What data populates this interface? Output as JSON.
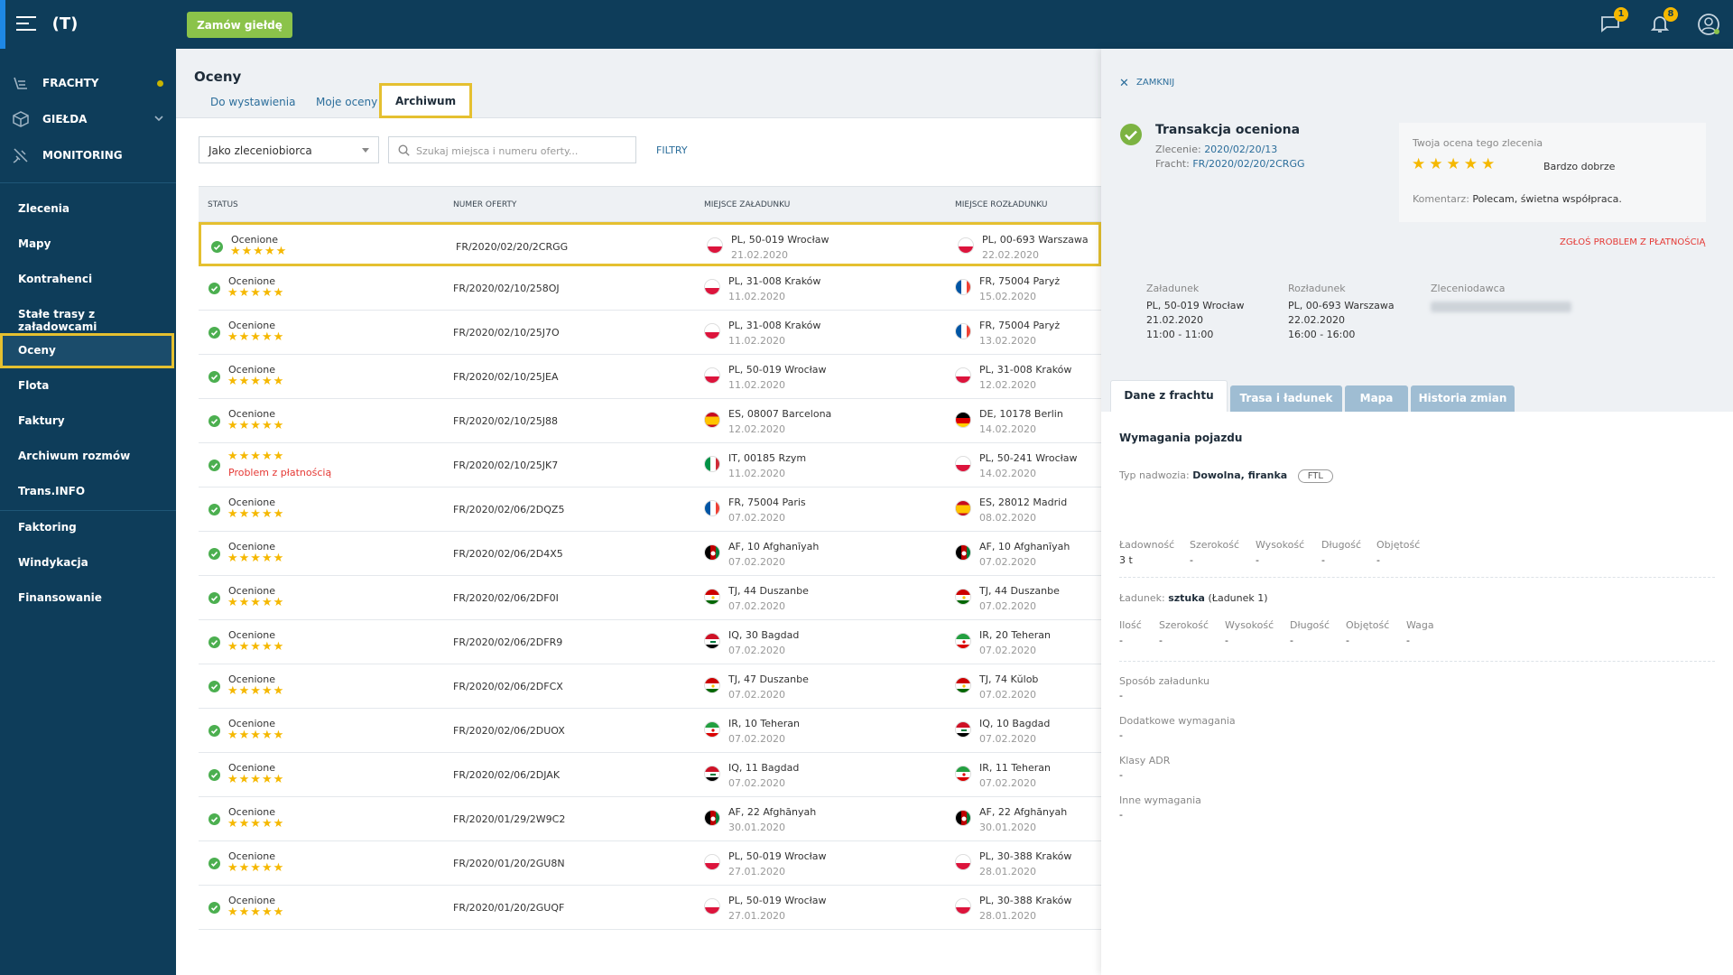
{
  "topbar": {
    "logo": "(T)",
    "order_button": "Zamów giełdę",
    "messages_badge": "1",
    "notifications_badge": "8"
  },
  "sidebar": {
    "main": [
      {
        "label": "FRACHTY",
        "icon": "freight-icon"
      },
      {
        "label": "GIEŁDA",
        "icon": "box-icon"
      },
      {
        "label": "MONITORING",
        "icon": "satellite-icon"
      }
    ],
    "items": [
      "Zlecenia",
      "Mapy",
      "Kontrahenci",
      "Stałe trasy z załadowcami",
      "Oceny",
      "Flota",
      "Faktury",
      "Archiwum rozmów",
      "Trans.INFO",
      "Faktoring",
      "Windykacja",
      "Finansowanie"
    ]
  },
  "page": {
    "title": "Oceny",
    "tabs": [
      "Do wystawienia",
      "Moje oceny",
      "Archiwum"
    ],
    "dropdown": "Jako zleceniobiorca",
    "search_placeholder": "Szukaj miejsca i numeru oferty...",
    "filters": "FILTRY"
  },
  "table": {
    "headers": [
      "STATUS",
      "NUMER OFERTY",
      "MIEJSCE ZAŁADUNKU",
      "MIEJSCE ROZŁADUNKU"
    ],
    "rows": [
      {
        "status": "Ocenione",
        "problem": false,
        "offer": "FR/2020/02/20/2CRGG",
        "load": "PL, 50-019 Wrocław",
        "load_date": "21.02.2020",
        "load_flag": "pl",
        "unload": "PL, 00-693 Warszawa",
        "unload_date": "22.02.2020",
        "unload_flag": "pl"
      },
      {
        "status": "Ocenione",
        "problem": false,
        "offer": "FR/2020/02/10/258OJ",
        "load": "PL, 31-008 Kraków",
        "load_date": "11.02.2020",
        "load_flag": "pl",
        "unload": "FR, 75004 Paryż",
        "unload_date": "15.02.2020",
        "unload_flag": "fr"
      },
      {
        "status": "Ocenione",
        "problem": false,
        "offer": "FR/2020/02/10/25J7O",
        "load": "PL, 31-008 Kraków",
        "load_date": "11.02.2020",
        "load_flag": "pl",
        "unload": "FR, 75004 Paryż",
        "unload_date": "13.02.2020",
        "unload_flag": "fr"
      },
      {
        "status": "Ocenione",
        "problem": false,
        "offer": "FR/2020/02/10/25JEA",
        "load": "PL, 50-019 Wrocław",
        "load_date": "11.02.2020",
        "load_flag": "pl",
        "unload": "PL, 31-008 Kraków",
        "unload_date": "12.02.2020",
        "unload_flag": "pl"
      },
      {
        "status": "Ocenione",
        "problem": false,
        "offer": "FR/2020/02/10/25J88",
        "load": "ES, 08007 Barcelona",
        "load_date": "12.02.2020",
        "load_flag": "es",
        "unload": "DE, 10178 Berlin",
        "unload_date": "14.02.2020",
        "unload_flag": "de"
      },
      {
        "status": "Problem z płatnością",
        "problem": true,
        "offer": "FR/2020/02/10/25JK7",
        "load": "IT, 00185 Rzym",
        "load_date": "11.02.2020",
        "load_flag": "it",
        "unload": "PL, 50-241 Wrocław",
        "unload_date": "14.02.2020",
        "unload_flag": "pl"
      },
      {
        "status": "Ocenione",
        "problem": false,
        "offer": "FR/2020/02/06/2DQZ5",
        "load": "FR, 75004 Paris",
        "load_date": "07.02.2020",
        "load_flag": "fr",
        "unload": "ES, 28012 Madrid",
        "unload_date": "08.02.2020",
        "unload_flag": "es"
      },
      {
        "status": "Ocenione",
        "problem": false,
        "offer": "FR/2020/02/06/2D4X5",
        "load": "AF, 10 Afghanīyah",
        "load_date": "07.02.2020",
        "load_flag": "af",
        "unload": "AF, 10 Afghanīyah",
        "unload_date": "07.02.2020",
        "unload_flag": "af"
      },
      {
        "status": "Ocenione",
        "problem": false,
        "offer": "FR/2020/02/06/2DF0I",
        "load": "TJ, 44 Duszanbe",
        "load_date": "07.02.2020",
        "load_flag": "tj",
        "unload": "TJ, 44 Duszanbe",
        "unload_date": "07.02.2020",
        "unload_flag": "tj"
      },
      {
        "status": "Ocenione",
        "problem": false,
        "offer": "FR/2020/02/06/2DFR9",
        "load": "IQ, 30 Bagdad",
        "load_date": "07.02.2020",
        "load_flag": "iq",
        "unload": "IR, 20 Teheran",
        "unload_date": "07.02.2020",
        "unload_flag": "ir"
      },
      {
        "status": "Ocenione",
        "problem": false,
        "offer": "FR/2020/02/06/2DFCX",
        "load": "TJ, 47 Duszanbe",
        "load_date": "07.02.2020",
        "load_flag": "tj",
        "unload": "TJ, 74 Kŭlob",
        "unload_date": "07.02.2020",
        "unload_flag": "tj"
      },
      {
        "status": "Ocenione",
        "problem": false,
        "offer": "FR/2020/02/06/2DUOX",
        "load": "IR, 10 Teheran",
        "load_date": "07.02.2020",
        "load_flag": "ir",
        "unload": "IQ, 10 Bagdad",
        "unload_date": "07.02.2020",
        "unload_flag": "iq"
      },
      {
        "status": "Ocenione",
        "problem": false,
        "offer": "FR/2020/02/06/2DJAK",
        "load": "IQ, 11 Bagdad",
        "load_date": "07.02.2020",
        "load_flag": "iq",
        "unload": "IR, 11 Teheran",
        "unload_date": "07.02.2020",
        "unload_flag": "ir"
      },
      {
        "status": "Ocenione",
        "problem": false,
        "offer": "FR/2020/01/29/2W9C2",
        "load": "AF, 22 Afghānyah",
        "load_date": "30.01.2020",
        "load_flag": "af",
        "unload": "AF, 22 Afghānyah",
        "unload_date": "30.01.2020",
        "unload_flag": "af"
      },
      {
        "status": "Ocenione",
        "problem": false,
        "offer": "FR/2020/01/20/2GU8N",
        "load": "PL, 50-019 Wrocław",
        "load_date": "27.01.2020",
        "load_flag": "pl",
        "unload": "PL, 30-388 Kraków",
        "unload_date": "28.01.2020",
        "unload_flag": "pl"
      },
      {
        "status": "Ocenione",
        "problem": false,
        "offer": "FR/2020/01/20/2GUQF",
        "load": "PL, 50-019 Wrocław",
        "load_date": "27.01.2020",
        "load_flag": "pl",
        "unload": "PL, 30-388 Kraków",
        "unload_date": "28.01.2020",
        "unload_flag": "pl"
      }
    ]
  },
  "panel": {
    "close": "ZAMKNIJ",
    "title": "Transakcja oceniona",
    "order_label": "Zlecenie:",
    "order_value": "2020/02/20/13",
    "freight_label": "Fracht:",
    "freight_value": "FR/2020/02/20/2CRGG",
    "rating_label": "Twoja ocena tego zlecenia",
    "rating_stars": "★★★★★",
    "rating_text": "Bardzo dobrze",
    "comment_label": "Komentarz:",
    "comment_value": "Polecam, świetna współpraca.",
    "report": "ZGŁOŚ PROBLEM Z PŁATNOŚCIĄ",
    "loading": {
      "title": "Załadunek",
      "place": "PL, 50-019 Wrocław",
      "date": "21.02.2020",
      "time": "11:00 - 11:00"
    },
    "unloading": {
      "title": "Rozładunek",
      "place": "PL, 00-693 Warszawa",
      "date": "22.02.2020",
      "time": "16:00 - 16:00"
    },
    "client_title": "Zleceniodawca",
    "tabs": [
      "Dane z frachtu",
      "Trasa i ładunek",
      "Mapa",
      "Historia zmian"
    ],
    "vehicle": {
      "title": "Wymagania pojazdu",
      "body_label": "Typ nadwozia:",
      "body_value": "Dowolna, firanka",
      "ftl": "FTL",
      "specs": [
        {
          "k": "Ładowność",
          "v": "3 t"
        },
        {
          "k": "Szerokość",
          "v": "-"
        },
        {
          "k": "Wysokość",
          "v": "-"
        },
        {
          "k": "Długość",
          "v": "-"
        },
        {
          "k": "Objętość",
          "v": "-"
        }
      ]
    },
    "cargo": {
      "label": "Ładunek:",
      "value": "sztuka",
      "sub": "(Ładunek 1)",
      "specs": [
        {
          "k": "Ilość",
          "v": "-"
        },
        {
          "k": "Szerokość",
          "v": "-"
        },
        {
          "k": "Wysokość",
          "v": "-"
        },
        {
          "k": "Długość",
          "v": "-"
        },
        {
          "k": "Objętość",
          "v": "-"
        },
        {
          "k": "Waga",
          "v": "-"
        }
      ]
    },
    "fields": [
      {
        "k": "Sposób załadunku",
        "v": "-"
      },
      {
        "k": "Dodatkowe wymagania",
        "v": "-"
      },
      {
        "k": "Klasy ADR",
        "v": "-"
      },
      {
        "k": "Inne wymagania",
        "v": "-"
      }
    ]
  }
}
